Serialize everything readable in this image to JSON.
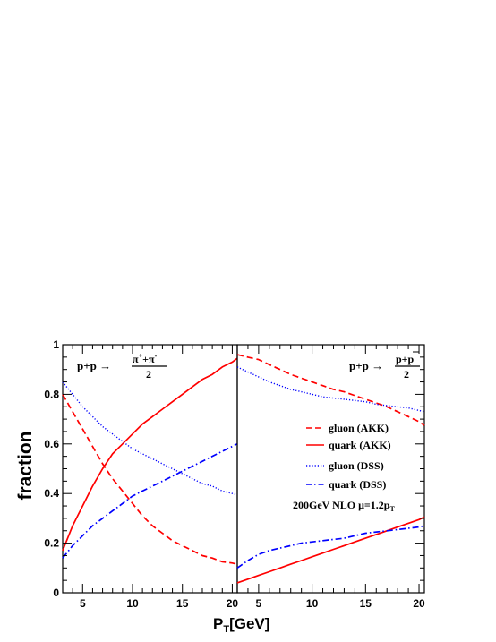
{
  "chart_data": {
    "type": "line",
    "ylabel": "fraction",
    "xlabel": "P",
    "xlabel_sub": "T",
    "xlabel_unit": "[GeV]",
    "ylim": [
      0,
      1
    ],
    "yticks": [
      "0",
      "0.2",
      "0.4",
      "0.6",
      "0.8",
      "1"
    ],
    "yticks_values": [
      0,
      0.2,
      0.4,
      0.6,
      0.8,
      1.0
    ],
    "grid": false,
    "colors": {
      "akk": "#ff0000",
      "dss": "#0000ff"
    },
    "legend": {
      "placement": "right-panel-center",
      "entries": [
        {
          "label": "gluon (AKK)",
          "color": "#ff0000",
          "dash": "dashed"
        },
        {
          "label": "quark (AKK)",
          "color": "#ff0000",
          "dash": "solid"
        },
        {
          "label": "gluon (DSS)",
          "color": "#0000ff",
          "dash": "dotted"
        },
        {
          "label": "quark (DSS)",
          "color": "#0000ff",
          "dash": "dashdot"
        }
      ]
    },
    "annotation": {
      "main": "200GeV  NLO  μ=1.2p",
      "sub": "T"
    },
    "panels": [
      {
        "id": "left",
        "process_prefix": "p+p →",
        "frac_num": "π",
        "frac_num_sup1": "+",
        "frac_num_mid": "+π",
        "frac_num_sup2": "-",
        "frac_den": "2",
        "xlim": [
          3,
          20.5
        ],
        "xticks": [
          "5",
          "10",
          "15",
          "20"
        ],
        "xticks_values": [
          5,
          10,
          15,
          20
        ],
        "x": [
          3,
          4,
          5,
          6,
          7,
          8,
          9,
          10,
          11,
          12,
          13,
          14,
          15,
          16,
          17,
          18,
          19,
          20,
          20.5
        ],
        "series": [
          {
            "key": "gluon_akk",
            "color": "#ff0000",
            "dash": "dashed",
            "values": [
              0.8,
              0.73,
              0.66,
              0.59,
              0.52,
              0.46,
              0.41,
              0.36,
              0.31,
              0.27,
              0.24,
              0.21,
              0.19,
              0.17,
              0.15,
              0.14,
              0.125,
              0.12,
              0.115
            ]
          },
          {
            "key": "quark_akk",
            "color": "#ff0000",
            "dash": "solid",
            "values": [
              0.17,
              0.27,
              0.35,
              0.43,
              0.5,
              0.56,
              0.6,
              0.64,
              0.68,
              0.71,
              0.74,
              0.77,
              0.8,
              0.83,
              0.86,
              0.88,
              0.91,
              0.93,
              0.945
            ]
          },
          {
            "key": "gluon_dss",
            "color": "#0000ff",
            "dash": "dotted",
            "values": [
              0.85,
              0.8,
              0.75,
              0.71,
              0.67,
              0.64,
              0.61,
              0.58,
              0.56,
              0.54,
              0.52,
              0.5,
              0.48,
              0.46,
              0.44,
              0.43,
              0.41,
              0.4,
              0.395
            ]
          },
          {
            "key": "quark_dss",
            "color": "#0000ff",
            "dash": "dashdot",
            "values": [
              0.14,
              0.19,
              0.23,
              0.27,
              0.3,
              0.33,
              0.36,
              0.39,
              0.41,
              0.43,
              0.45,
              0.47,
              0.49,
              0.51,
              0.53,
              0.55,
              0.57,
              0.59,
              0.6
            ]
          }
        ]
      },
      {
        "id": "right",
        "process_prefix": "p+p →",
        "frac_num": "p+p",
        "frac_num_overline": "p",
        "frac_den": "2",
        "xlim": [
          3,
          20.5
        ],
        "xticks": [
          "5",
          "10",
          "15",
          "20"
        ],
        "xticks_values": [
          5,
          10,
          15,
          20
        ],
        "x": [
          3,
          4,
          5,
          6,
          7,
          8,
          9,
          10,
          11,
          12,
          13,
          14,
          15,
          16,
          17,
          18,
          19,
          20,
          20.5
        ],
        "series": [
          {
            "key": "gluon_akk",
            "color": "#ff0000",
            "dash": "dashed",
            "values": [
              0.96,
              0.95,
              0.94,
              0.92,
              0.9,
              0.88,
              0.865,
              0.85,
              0.835,
              0.82,
              0.81,
              0.795,
              0.78,
              0.765,
              0.75,
              0.73,
              0.71,
              0.69,
              0.675
            ]
          },
          {
            "key": "quark_akk",
            "color": "#ff0000",
            "dash": "solid",
            "values": [
              0.04,
              0.055,
              0.07,
              0.085,
              0.1,
              0.115,
              0.13,
              0.145,
              0.16,
              0.175,
              0.19,
              0.205,
              0.22,
              0.235,
              0.25,
              0.265,
              0.28,
              0.295,
              0.305
            ]
          },
          {
            "key": "gluon_dss",
            "color": "#0000ff",
            "dash": "dotted",
            "values": [
              0.91,
              0.89,
              0.87,
              0.85,
              0.835,
              0.82,
              0.81,
              0.8,
              0.79,
              0.785,
              0.78,
              0.775,
              0.77,
              0.76,
              0.755,
              0.75,
              0.745,
              0.735,
              0.73
            ]
          },
          {
            "key": "quark_dss",
            "color": "#0000ff",
            "dash": "dashdot",
            "values": [
              0.1,
              0.13,
              0.155,
              0.17,
              0.18,
              0.19,
              0.2,
              0.205,
              0.21,
              0.215,
              0.22,
              0.23,
              0.24,
              0.245,
              0.25,
              0.255,
              0.26,
              0.265,
              0.27
            ]
          }
        ]
      }
    ]
  }
}
